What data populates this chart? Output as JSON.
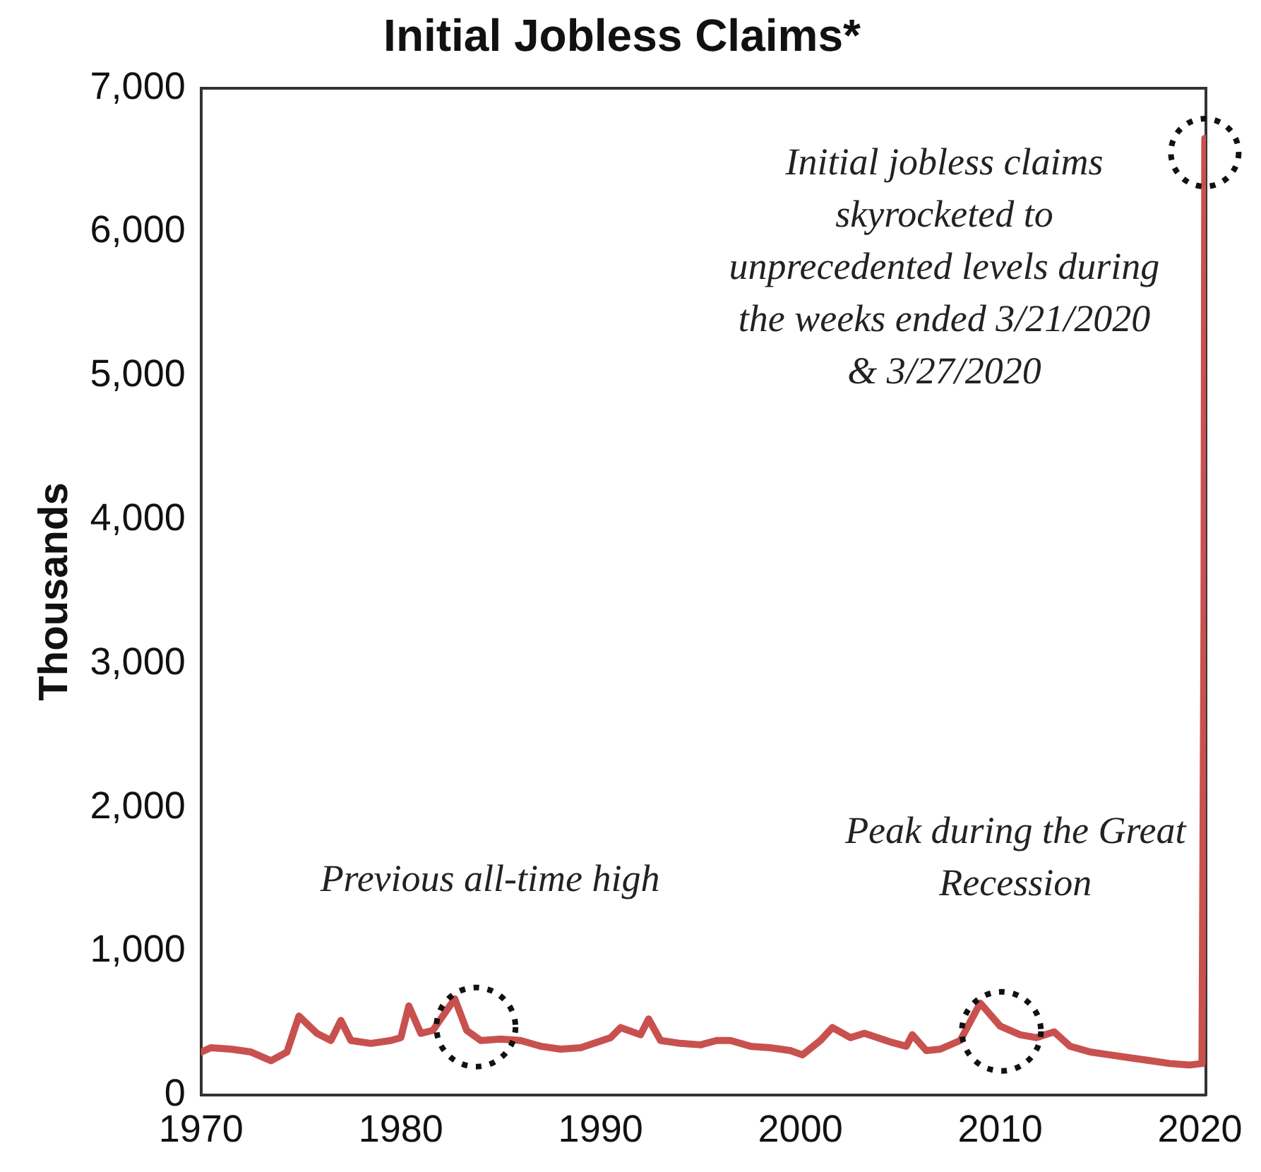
{
  "chart_data": {
    "type": "line",
    "title": "Initial Jobless Claims*",
    "ylabel": "Thousands",
    "series": [
      {
        "color": "#c8514f",
        "x": [
          1970.0,
          1970.5,
          1971.5,
          1972.5,
          1973.5,
          1974.3,
          1974.9,
          1975.8,
          1976.5,
          1977.0,
          1977.5,
          1978.5,
          1979.5,
          1980.0,
          1980.4,
          1981.0,
          1981.6,
          1982.7,
          1983.3,
          1984.0,
          1985.0,
          1986.0,
          1987.0,
          1988.0,
          1989.0,
          1990.5,
          1991.0,
          1992.0,
          1992.4,
          1993.0,
          1994.0,
          1995.0,
          1995.8,
          1996.5,
          1997.5,
          1998.5,
          1999.5,
          2000.1,
          2001.0,
          2001.6,
          2002.5,
          2003.2,
          2004.5,
          2005.3,
          2005.6,
          2006.3,
          2007.0,
          2008.0,
          2009.0,
          2010.0,
          2011.0,
          2011.8,
          2012.7,
          2013.5,
          2014.5,
          2015.5,
          2016.5,
          2017.5,
          2018.5,
          2019.5,
          2020.1,
          2020.2,
          2020.24
        ],
        "values": [
          300,
          330,
          320,
          300,
          240,
          300,
          550,
          430,
          380,
          520,
          380,
          360,
          380,
          400,
          620,
          430,
          450,
          670,
          450,
          380,
          390,
          380,
          340,
          320,
          330,
          400,
          470,
          420,
          530,
          380,
          360,
          350,
          380,
          380,
          340,
          330,
          310,
          280,
          380,
          470,
          400,
          430,
          370,
          340,
          420,
          310,
          320,
          380,
          640,
          480,
          420,
          400,
          440,
          340,
          300,
          280,
          260,
          240,
          220,
          210,
          220,
          3300,
          6650
        ]
      }
    ],
    "xlim": [
      1970,
      2020.3
    ],
    "xticks": [
      1970,
      1980,
      1990,
      2000,
      2010,
      2020
    ],
    "ylim": [
      0,
      7000
    ],
    "yticks": [
      0,
      {
        "value": 1000,
        "label": "1,000"
      },
      {
        "value": 2000,
        "label": "2,000"
      },
      {
        "value": 3000,
        "label": "3,000"
      },
      {
        "value": 4000,
        "label": "4,000"
      },
      {
        "value": 5000,
        "label": "5,000"
      },
      {
        "value": 6000,
        "label": "6,000"
      },
      {
        "value": 7000,
        "label": "7,000"
      }
    ],
    "grid": false,
    "legend": false,
    "marker": "none",
    "line_style": "solid",
    "annotations": [
      {
        "text": "Initial jobless claims skyrocketed to unprecedented levels during the weeks ended 3/21/2020 & 3/27/2020",
        "x": 2020.24,
        "y": 6650
      },
      {
        "text": "Previous all-time high",
        "x": 1982.7,
        "y": 670
      },
      {
        "text": "Peak during the Great Recession",
        "x": 2009.0,
        "y": 640
      }
    ]
  }
}
